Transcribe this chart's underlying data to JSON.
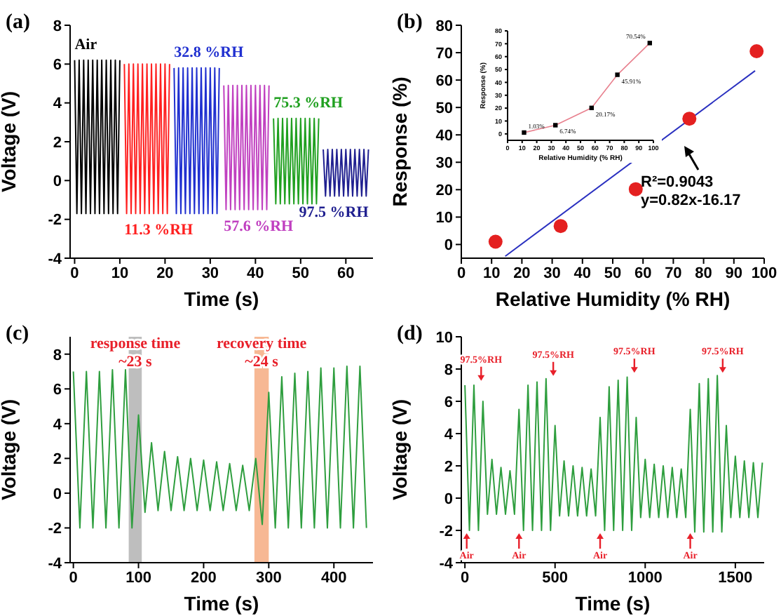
{
  "chart_data": [
    {
      "type": "line",
      "title": "(a)",
      "xlabel": "Time (s)",
      "ylabel": "Voltage (V)",
      "xlim": [
        -1,
        66
      ],
      "xticks": [
        0,
        10,
        20,
        30,
        40,
        50,
        60
      ],
      "ylim": [
        -4,
        8
      ],
      "yticks": [
        -4,
        -2,
        0,
        2,
        4,
        6,
        8
      ],
      "series": [
        {
          "name": "Air",
          "color": "#000000",
          "x": [
            0,
            0.5,
            1,
            1.5,
            2,
            2.5,
            3,
            3.5,
            4,
            4.5,
            5,
            5.5,
            6,
            6.5,
            7,
            7.5,
            8,
            8.5,
            9,
            9.5,
            10
          ],
          "values": [
            6.2,
            -1.7,
            6.2,
            -1.7,
            6.2,
            -1.7,
            6.2,
            -1.7,
            6.2,
            -1.7,
            6.2,
            -1.7,
            6.2,
            -1.7,
            6.2,
            -1.7,
            6.2,
            -1.7,
            6.2,
            -1.7,
            6.2
          ]
        },
        {
          "name": "11.3 %RH",
          "color": "#ff2020",
          "x": [
            11,
            11.5,
            12,
            12.5,
            13,
            13.5,
            14,
            14.5,
            15,
            15.5,
            16,
            16.5,
            17,
            17.5,
            18,
            18.5,
            19,
            19.5,
            20,
            20.5,
            21
          ],
          "values": [
            6.0,
            -1.7,
            6.0,
            -1.7,
            6.0,
            -1.7,
            6.0,
            -1.7,
            6.0,
            -1.7,
            6.0,
            -1.7,
            6.0,
            -1.7,
            6.0,
            -1.7,
            6.0,
            -1.7,
            6.0,
            -1.7,
            6.0
          ]
        },
        {
          "name": "32.8 %RH",
          "color": "#2030d0",
          "x": [
            22,
            22.5,
            23,
            23.5,
            24,
            24.5,
            25,
            25.5,
            26,
            26.5,
            27,
            27.5,
            28,
            28.5,
            29,
            29.5,
            30,
            30.5,
            31,
            31.5,
            32
          ],
          "values": [
            5.8,
            -1.7,
            5.8,
            -1.7,
            5.8,
            -1.7,
            5.8,
            -1.7,
            5.8,
            -1.7,
            5.8,
            -1.7,
            5.8,
            -1.7,
            5.8,
            -1.7,
            5.8,
            -1.7,
            5.8,
            -1.7,
            5.8
          ]
        },
        {
          "name": "57.6 %RH",
          "color": "#c040c0",
          "x": [
            33,
            33.5,
            34,
            34.5,
            35,
            35.5,
            36,
            36.5,
            37,
            37.5,
            38,
            38.5,
            39,
            39.5,
            40,
            40.5,
            41,
            41.5,
            42,
            42.5,
            43
          ],
          "values": [
            4.9,
            -1.5,
            4.9,
            -1.5,
            4.9,
            -1.5,
            4.9,
            -1.5,
            4.9,
            -1.5,
            4.9,
            -1.5,
            4.9,
            -1.5,
            4.9,
            -1.5,
            4.9,
            -1.5,
            4.9,
            -1.5,
            4.9
          ]
        },
        {
          "name": "75.3 %RH",
          "color": "#20a020",
          "x": [
            44,
            44.5,
            45,
            45.5,
            46,
            46.5,
            47,
            47.5,
            48,
            48.5,
            49,
            49.5,
            50,
            50.5,
            51,
            51.5,
            52,
            52.5,
            53,
            53.5,
            54
          ],
          "values": [
            3.2,
            -1.2,
            3.2,
            -1.2,
            3.2,
            -1.2,
            3.2,
            -1.2,
            3.2,
            -1.2,
            3.2,
            -1.2,
            3.2,
            -1.2,
            3.2,
            -1.2,
            3.2,
            -1.2,
            3.2,
            -1.2,
            3.2
          ]
        },
        {
          "name": "97.5 %RH",
          "color": "#202090",
          "x": [
            55,
            55.5,
            56,
            56.5,
            57,
            57.5,
            58,
            58.5,
            59,
            59.5,
            60,
            60.5,
            61,
            61.5,
            62,
            62.5,
            63,
            63.5,
            64,
            64.5,
            65
          ],
          "values": [
            1.6,
            -0.8,
            1.6,
            -0.8,
            1.6,
            -0.8,
            1.6,
            -0.8,
            1.6,
            -0.8,
            1.6,
            -0.8,
            1.6,
            -0.8,
            1.6,
            -0.8,
            1.6,
            -0.8,
            1.6,
            -0.8,
            1.6
          ]
        }
      ]
    },
    {
      "type": "scatter",
      "title": "(b)",
      "xlabel": "Relative Humidity (% RH)",
      "ylabel": "Response (%)",
      "xlim": [
        0,
        100
      ],
      "xticks": [
        0,
        10,
        20,
        30,
        40,
        50,
        60,
        70,
        80,
        90,
        100
      ],
      "ylim": [
        -5,
        80
      ],
      "yticks": [
        0,
        10,
        20,
        30,
        40,
        50,
        60,
        70,
        80
      ],
      "marker": "circle",
      "annotations": [
        "R²=0.9043",
        "y=0.82x-16.17"
      ],
      "series": [
        {
          "color": "#e42020",
          "x": [
            11.3,
            32.8,
            57.6,
            75.3,
            97.5
          ],
          "values": [
            1.03,
            6.74,
            20.17,
            45.91,
            70.54
          ]
        },
        {
          "type": "line",
          "color": "#2a30c0",
          "marker": "none",
          "x": [
            14.5,
            97
          ],
          "values": [
            -4.3,
            63.4
          ]
        }
      ]
    },
    {
      "type": "line",
      "xlabel": "Relative Humidity (% RH)",
      "ylabel": "Response (%)",
      "xlim": [
        0,
        100
      ],
      "xticks": [
        0,
        10,
        20,
        30,
        40,
        50,
        60,
        70,
        80,
        90,
        100
      ],
      "ylim": [
        -5,
        80
      ],
      "yticks": [
        0,
        10,
        20,
        30,
        40,
        50,
        60,
        70,
        80
      ],
      "marker": "square",
      "series": [
        {
          "color": "#e8808e",
          "colors": [
            "#000000",
            "#000000",
            "#000000",
            "#000000",
            "#000000"
          ],
          "x": [
            11.3,
            32.8,
            57.6,
            75.3,
            97.5
          ],
          "values": [
            1.03,
            6.74,
            20.17,
            45.91,
            70.54
          ],
          "value_labels": [
            "1.03%",
            "6.74%",
            "20.17%",
            "45.91%",
            "70.54%"
          ]
        }
      ]
    },
    {
      "type": "line",
      "title": "(c)",
      "xlabel": "Time (s)",
      "ylabel": "Voltage (V)",
      "xlim": [
        -5,
        460
      ],
      "xticks": [
        0,
        100,
        200,
        300,
        400
      ],
      "ylim": [
        -4,
        9
      ],
      "yticks": [
        -4,
        -2,
        0,
        2,
        4,
        6,
        8
      ],
      "bands": [
        {
          "axis": "x",
          "from": 85,
          "to": 105,
          "label": "response time\n~23 s",
          "color": "#a8a8a8"
        },
        {
          "axis": "x",
          "from": 278,
          "to": 300,
          "label": "recovery time\n~24 s",
          "color": "#f4a070"
        }
      ],
      "series": [
        {
          "color": "#2e9e3e",
          "x": [
            0,
            10,
            20,
            30,
            40,
            50,
            60,
            70,
            80,
            90,
            100,
            110,
            120,
            130,
            140,
            150,
            160,
            170,
            180,
            190,
            200,
            210,
            220,
            230,
            240,
            250,
            260,
            270,
            280,
            290,
            300,
            310,
            320,
            330,
            340,
            350,
            360,
            370,
            380,
            390,
            400,
            410,
            420,
            430,
            440,
            450
          ],
          "values": [
            7.0,
            -2,
            7.0,
            -2,
            7.0,
            -2,
            7.1,
            -2,
            7.1,
            -2,
            4.5,
            -1.1,
            2.9,
            -1.0,
            2.4,
            -1.0,
            2.1,
            -1.0,
            2.0,
            -1.0,
            1.9,
            -1.0,
            1.8,
            -1.0,
            1.7,
            -1.0,
            1.6,
            -1.0,
            2.0,
            -1.8,
            5.8,
            -2,
            6.7,
            -2,
            6.9,
            -2,
            7.0,
            -2,
            7.2,
            -2,
            7.2,
            -2,
            7.3,
            -2,
            7.3,
            -2
          ]
        }
      ]
    },
    {
      "type": "line",
      "title": "(d)",
      "xlabel": "Time (s)",
      "ylabel": "Voltage (V)",
      "xlim": [
        -20,
        1660
      ],
      "xticks": [
        0,
        500,
        1000,
        1500
      ],
      "ylim": [
        -4,
        10
      ],
      "yticks": [
        -4,
        -2,
        0,
        2,
        4,
        6,
        8,
        10
      ],
      "annotations": [
        {
          "text": "97.5%RH",
          "x": 90,
          "y": 7.1
        },
        {
          "text": "97.5%RH",
          "x": 490,
          "y": 7.4
        },
        {
          "text": "97.5%RH",
          "x": 940,
          "y": 7.6
        },
        {
          "text": "97.5%RH",
          "x": 1430,
          "y": 7.6
        },
        {
          "text": "Air",
          "x": 10,
          "y": -2
        },
        {
          "text": "Air",
          "x": 300,
          "y": -2
        },
        {
          "text": "Air",
          "x": 750,
          "y": -2
        },
        {
          "text": "Air",
          "x": 1250,
          "y": -2
        }
      ],
      "series": [
        {
          "color": "#2e9e3e",
          "x": [
            0,
            25,
            50,
            75,
            100,
            125,
            150,
            175,
            200,
            225,
            250,
            275,
            300,
            325,
            350,
            375,
            400,
            425,
            450,
            475,
            500,
            525,
            550,
            575,
            600,
            625,
            650,
            675,
            700,
            725,
            750,
            775,
            800,
            825,
            850,
            875,
            900,
            925,
            950,
            975,
            1000,
            1025,
            1050,
            1075,
            1100,
            1125,
            1150,
            1175,
            1200,
            1225,
            1250,
            1275,
            1300,
            1325,
            1350,
            1375,
            1400,
            1425,
            1450,
            1475,
            1500,
            1525,
            1550,
            1575,
            1600,
            1625,
            1650
          ],
          "values": [
            7.0,
            -2,
            7.0,
            -2,
            6.0,
            -1,
            2.4,
            -1,
            1.9,
            -1,
            1.7,
            -1,
            5.5,
            -2,
            7.0,
            -2,
            7.2,
            -2,
            7.4,
            -2,
            4.5,
            -1.1,
            2.3,
            -1.1,
            2.0,
            -1.1,
            1.9,
            -1.1,
            1.8,
            -1.1,
            5.0,
            -2,
            6.9,
            -2,
            7.3,
            -2,
            7.5,
            -2,
            5.0,
            -1.2,
            2.4,
            -1.2,
            2.1,
            -1.2,
            2.0,
            -1.2,
            1.9,
            -1.2,
            1.8,
            -1.2,
            5.5,
            -2.1,
            7.1,
            -2.1,
            7.4,
            -2.1,
            7.6,
            -2.1,
            4.5,
            -1.2,
            2.6,
            -1.2,
            2.3,
            -1.2,
            2.2,
            -1.2,
            2.2
          ]
        }
      ]
    }
  ]
}
